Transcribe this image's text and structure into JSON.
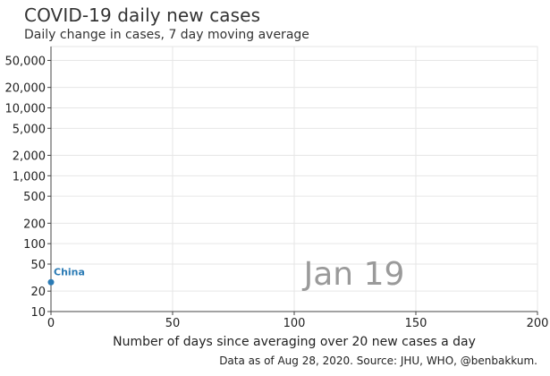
{
  "title": "COVID-19 daily new cases",
  "subtitle": "Daily change in cases, 7 day moving average",
  "source": "Data as of Aug 28, 2020. Source: JHU, WHO, @benbakkum.",
  "date_overlay": "Jan 19",
  "colors": {
    "series": "#2b7bb5",
    "grid": "#e6e6e6",
    "axis": "#444444",
    "date_overlay": "#9a9a9a"
  },
  "chart_data": {
    "type": "scatter",
    "title": "COVID-19 daily new cases",
    "subtitle": "Daily change in cases, 7 day moving average",
    "xlabel": "Number of days since averaging over 20 new cases a day",
    "ylabel": "",
    "xlim": [
      0,
      200
    ],
    "ylim": [
      10,
      80000
    ],
    "yscale": "log",
    "grid": true,
    "xticks": [
      0,
      50,
      100,
      150,
      200
    ],
    "xtick_labels": [
      "0",
      "50",
      "100",
      "150",
      "200"
    ],
    "yticks": [
      10,
      20,
      50,
      100,
      200,
      500,
      1000,
      2000,
      5000,
      10000,
      20000,
      50000
    ],
    "ytick_labels": [
      "10",
      "20",
      "50",
      "100",
      "200",
      "500",
      "1,000",
      "2,000",
      "5,000",
      "10,000",
      "20,000",
      "50,000"
    ],
    "series": [
      {
        "name": "China",
        "points": [
          {
            "x": 0,
            "y": 27
          }
        ]
      }
    ]
  }
}
